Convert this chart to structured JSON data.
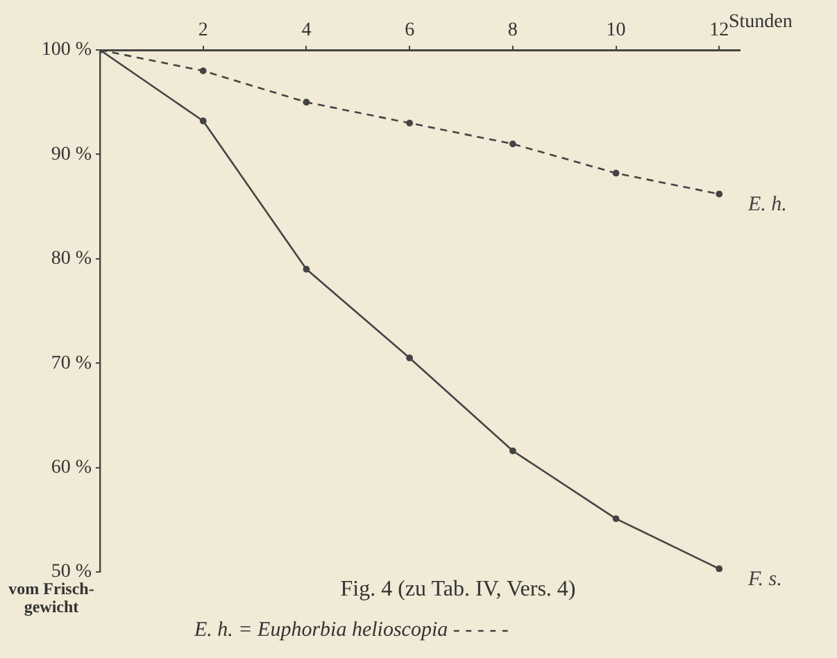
{
  "chart_data": {
    "type": "line",
    "title": "Fig. 4 (zu Tab. IV, Vers. 4)",
    "xlabel": "Stunden",
    "ylabel": "vom Frisch-gewicht",
    "x": [
      0,
      2,
      4,
      6,
      8,
      10,
      12
    ],
    "series": [
      {
        "name": "E. h.",
        "color": "#444444",
        "line_style": "dashed",
        "values": [
          100,
          98.0,
          95.0,
          93.0,
          91.0,
          88.2,
          86.2
        ]
      },
      {
        "name": "F. s.",
        "color": "#444444",
        "line_style": "solid",
        "values": [
          100,
          93.2,
          79.0,
          70.5,
          61.6,
          55.1,
          50.3
        ]
      }
    ],
    "xlim": [
      0,
      12.4
    ],
    "xticks": [
      2,
      4,
      6,
      8,
      10,
      12
    ],
    "ylim": [
      50,
      100
    ],
    "yticks": [
      {
        "value": 50,
        "label": "50 %"
      },
      {
        "value": 60,
        "label": "60 %"
      },
      {
        "value": 70,
        "label": "70 %"
      },
      {
        "value": 80,
        "label": "80 %"
      },
      {
        "value": 90,
        "label": "90 %"
      },
      {
        "value": 100,
        "label": "100 %"
      }
    ],
    "annotations": [
      "E. h. = Euphorbia helioscopia - - - - -"
    ],
    "grid": false,
    "legend": false,
    "marker": "circle"
  }
}
